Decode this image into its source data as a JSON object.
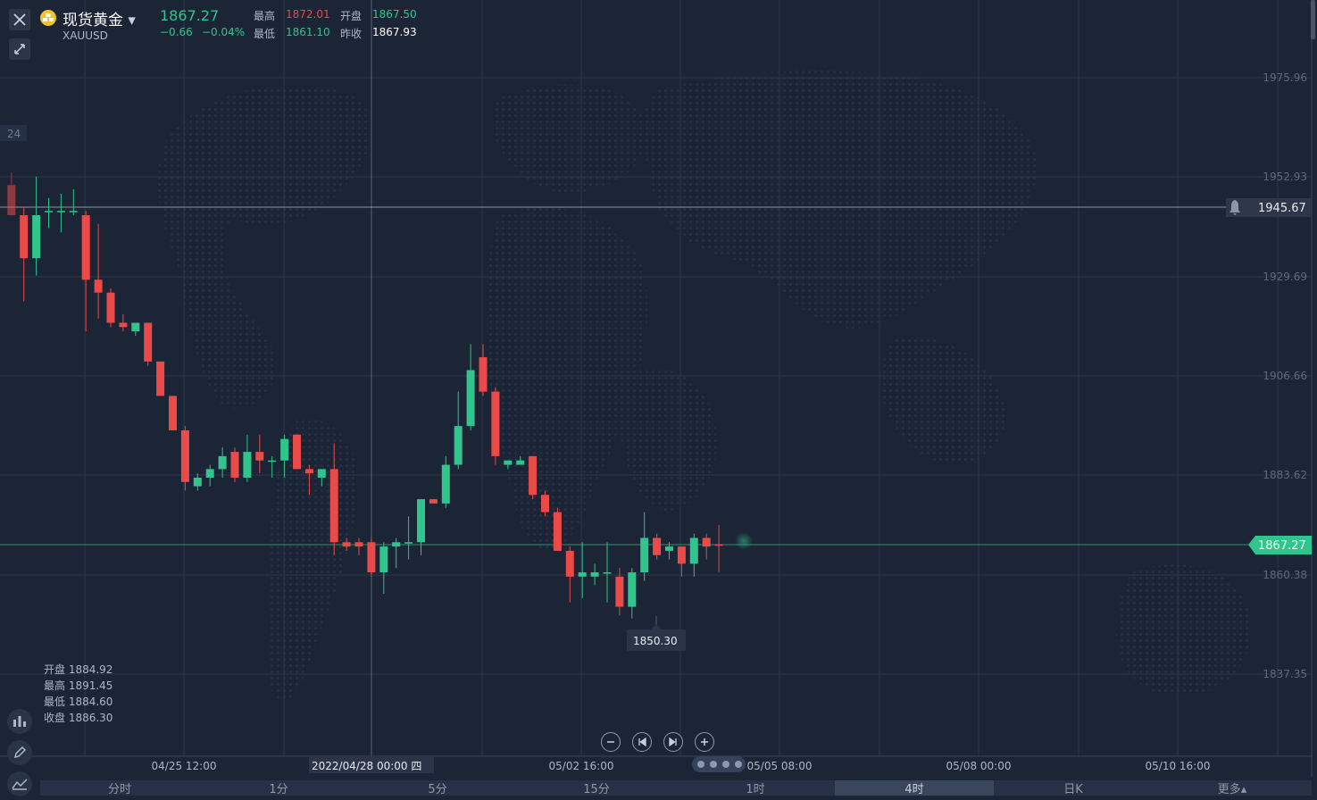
{
  "instrument": {
    "name": "现货黄金",
    "symbol": "XAUUSD",
    "price": "1867.27",
    "change": "−0.66",
    "change_pct": "−0.04%"
  },
  "stats": {
    "high_label": "最高",
    "high": "1872.01",
    "open_label": "开盘",
    "open": "1867.50",
    "low_label": "最低",
    "low": "1861.10",
    "prev_close_label": "昨收",
    "prev_close": "1867.93"
  },
  "ohlc_panel": {
    "open": "开盘 1884.92",
    "high": "最高 1891.45",
    "low": "最低 1884.60",
    "close": "收盘 1886.30"
  },
  "crosshair_date_label": "2022/04/28 00:00 四",
  "alert_price": "1945.67",
  "current_price_tag": "1867.27",
  "min_marker": "1850.30",
  "left_edge_label": "24",
  "timeframes": [
    "分时",
    "1分",
    "5分",
    "15分",
    "1时",
    "4时",
    "日K",
    "更多▴"
  ],
  "active_timeframe": "4时",
  "colors": {
    "background": "#1c2536",
    "up": "#2fc58c",
    "down": "#ea4a48",
    "grid": "#2d3749",
    "price_tag": "#2fc58c"
  },
  "icons": [
    "close-icon",
    "collapse-icon",
    "gold-coin-icon",
    "caret-down-icon",
    "bell-icon",
    "indicator-icon",
    "pen-icon",
    "line-tool-icon",
    "zoom-out-icon",
    "first-icon",
    "last-icon",
    "zoom-in-icon"
  ],
  "chart_data": {
    "type": "candlestick",
    "y_ticks": [
      "1975.96",
      "1952.93",
      "1929.69",
      "1906.66",
      "1883.62",
      "1860.38",
      "1837.35"
    ],
    "x_ticks": [
      "04/25 12:00",
      "05/02 16:00",
      "05/05 08:00",
      "05/08 00:00",
      "05/10 16:00"
    ],
    "ylim": [
      1820,
      1995
    ],
    "grid": true,
    "candles": [
      {
        "o": 1951.0,
        "h": 1954.0,
        "l": 1944.0,
        "c": 1944.0
      },
      {
        "o": 1944.0,
        "h": 1946.0,
        "l": 1924.0,
        "c": 1934.0
      },
      {
        "o": 1934.0,
        "h": 1953.0,
        "l": 1930.0,
        "c": 1944.0
      },
      {
        "o": 1945.0,
        "h": 1948.0,
        "l": 1941.0,
        "c": 1945.0
      },
      {
        "o": 1945.0,
        "h": 1949.0,
        "l": 1940.0,
        "c": 1945.0
      },
      {
        "o": 1945.0,
        "h": 1950.0,
        "l": 1944.0,
        "c": 1945.0
      },
      {
        "o": 1944.0,
        "h": 1945.0,
        "l": 1917.0,
        "c": 1929.0
      },
      {
        "o": 1929.0,
        "h": 1942.0,
        "l": 1920.0,
        "c": 1926.0
      },
      {
        "o": 1926.0,
        "h": 1927.0,
        "l": 1918.0,
        "c": 1919.0
      },
      {
        "o": 1919.0,
        "h": 1921.0,
        "l": 1917.0,
        "c": 1918.0
      },
      {
        "o": 1917.0,
        "h": 1919.0,
        "l": 1916.0,
        "c": 1919.0
      },
      {
        "o": 1919.0,
        "h": 1919.0,
        "l": 1909.0,
        "c": 1910.0
      },
      {
        "o": 1910.0,
        "h": 1910.0,
        "l": 1902.0,
        "c": 1902.0
      },
      {
        "o": 1902.0,
        "h": 1902.0,
        "l": 1894.0,
        "c": 1894.0
      },
      {
        "o": 1894.0,
        "h": 1895.0,
        "l": 1880.0,
        "c": 1882.0
      },
      {
        "o": 1881.0,
        "h": 1884.0,
        "l": 1880.0,
        "c": 1883.0
      },
      {
        "o": 1883.0,
        "h": 1886.0,
        "l": 1881.0,
        "c": 1885.0
      },
      {
        "o": 1885.0,
        "h": 1890.0,
        "l": 1883.0,
        "c": 1888.0
      },
      {
        "o": 1889.0,
        "h": 1890.0,
        "l": 1882.0,
        "c": 1883.0
      },
      {
        "o": 1883.0,
        "h": 1893.0,
        "l": 1882.0,
        "c": 1889.0
      },
      {
        "o": 1889.0,
        "h": 1893.0,
        "l": 1884.0,
        "c": 1887.0
      },
      {
        "o": 1887.0,
        "h": 1888.0,
        "l": 1883.0,
        "c": 1887.0
      },
      {
        "o": 1887.0,
        "h": 1893.0,
        "l": 1883.0,
        "c": 1892.0
      },
      {
        "o": 1893.0,
        "h": 1893.0,
        "l": 1885.0,
        "c": 1885.0
      },
      {
        "o": 1885.0,
        "h": 1886.0,
        "l": 1879.0,
        "c": 1884.0
      },
      {
        "o": 1883.0,
        "h": 1884.0,
        "l": 1881.0,
        "c": 1885.0
      },
      {
        "o": 1885.0,
        "h": 1891.0,
        "l": 1865.0,
        "c": 1868.0
      },
      {
        "o": 1868.0,
        "h": 1869.0,
        "l": 1866.0,
        "c": 1867.0
      },
      {
        "o": 1868.0,
        "h": 1869.0,
        "l": 1865.0,
        "c": 1867.0
      },
      {
        "o": 1868.0,
        "h": 1869.0,
        "l": 1860.0,
        "c": 1861.0
      },
      {
        "o": 1861.0,
        "h": 1868.0,
        "l": 1856.0,
        "c": 1867.0
      },
      {
        "o": 1867.0,
        "h": 1869.0,
        "l": 1862.0,
        "c": 1868.0
      },
      {
        "o": 1868.0,
        "h": 1874.0,
        "l": 1864.0,
        "c": 1868.0
      },
      {
        "o": 1868.0,
        "h": 1878.0,
        "l": 1865.0,
        "c": 1878.0
      },
      {
        "o": 1878.0,
        "h": 1878.0,
        "l": 1877.0,
        "c": 1877.0
      },
      {
        "o": 1877.0,
        "h": 1888.0,
        "l": 1876.0,
        "c": 1886.0
      },
      {
        "o": 1886.0,
        "h": 1903.0,
        "l": 1885.0,
        "c": 1895.0
      },
      {
        "o": 1895.0,
        "h": 1914.0,
        "l": 1894.0,
        "c": 1908.0
      },
      {
        "o": 1911.0,
        "h": 1914.0,
        "l": 1902.0,
        "c": 1903.0
      },
      {
        "o": 1903.0,
        "h": 1904.0,
        "l": 1886.0,
        "c": 1888.0
      },
      {
        "o": 1886.0,
        "h": 1887.0,
        "l": 1885.0,
        "c": 1887.0
      },
      {
        "o": 1886.0,
        "h": 1888.0,
        "l": 1886.0,
        "c": 1887.0
      },
      {
        "o": 1888.0,
        "h": 1888.0,
        "l": 1878.0,
        "c": 1879.0
      },
      {
        "o": 1879.0,
        "h": 1880.0,
        "l": 1874.0,
        "c": 1875.0
      },
      {
        "o": 1875.0,
        "h": 1876.0,
        "l": 1866.0,
        "c": 1866.0
      },
      {
        "o": 1866.0,
        "h": 1867.0,
        "l": 1854.0,
        "c": 1860.0
      },
      {
        "o": 1860.0,
        "h": 1868.0,
        "l": 1855.0,
        "c": 1861.0
      },
      {
        "o": 1860.0,
        "h": 1863.0,
        "l": 1858.0,
        "c": 1861.0
      },
      {
        "o": 1861.0,
        "h": 1868.0,
        "l": 1854.0,
        "c": 1861.0
      },
      {
        "o": 1860.0,
        "h": 1862.0,
        "l": 1851.0,
        "c": 1853.0
      },
      {
        "o": 1853.0,
        "h": 1862.0,
        "l": 1850.3,
        "c": 1861.0
      },
      {
        "o": 1861.0,
        "h": 1875.0,
        "l": 1859.0,
        "c": 1869.0
      },
      {
        "o": 1869.0,
        "h": 1870.0,
        "l": 1864.0,
        "c": 1865.0
      },
      {
        "o": 1866.0,
        "h": 1868.0,
        "l": 1864.0,
        "c": 1867.0
      },
      {
        "o": 1867.0,
        "h": 1867.0,
        "l": 1860.0,
        "c": 1863.0
      },
      {
        "o": 1863.0,
        "h": 1870.0,
        "l": 1860.0,
        "c": 1869.0
      },
      {
        "o": 1869.0,
        "h": 1870.0,
        "l": 1864.0,
        "c": 1867.0
      },
      {
        "o": 1867.5,
        "h": 1872.0,
        "l": 1861.1,
        "c": 1867.27
      }
    ]
  }
}
